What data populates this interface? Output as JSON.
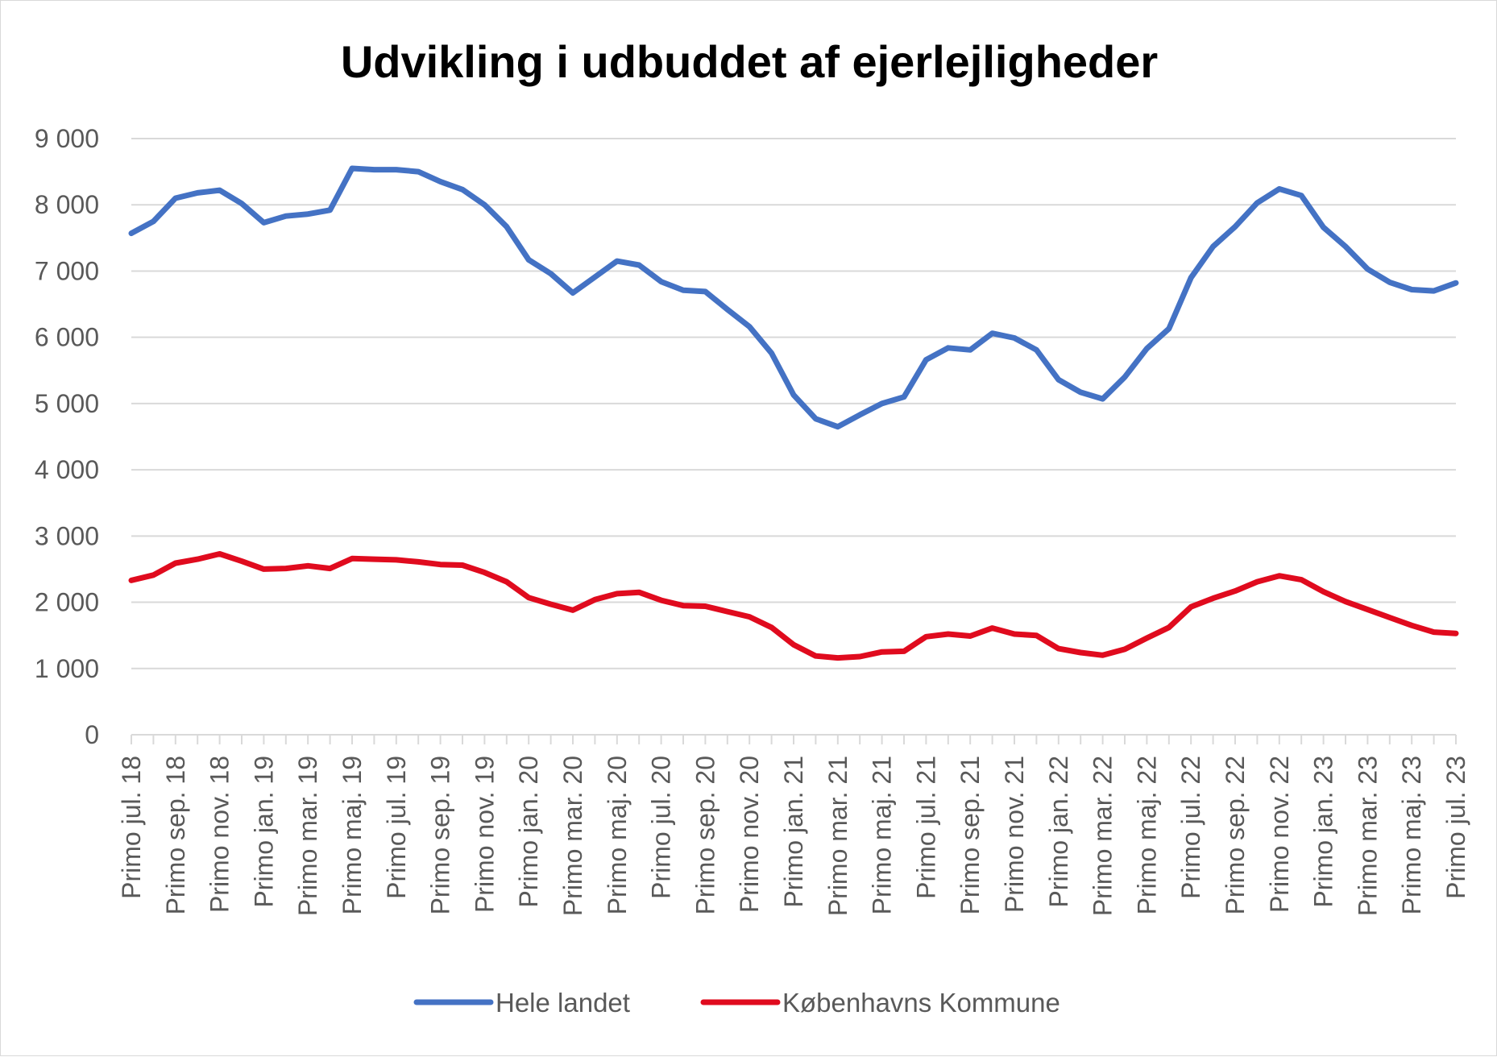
{
  "chart_data": {
    "type": "line",
    "title": "Udvikling i udbuddet af ejerlejligheder",
    "xlabel": "",
    "ylabel": "",
    "ylim": [
      0,
      9000
    ],
    "yticks": [
      0,
      1000,
      2000,
      3000,
      4000,
      5000,
      6000,
      7000,
      8000,
      9000
    ],
    "ytick_labels": [
      "0",
      "1 000",
      "2 000",
      "3 000",
      "4 000",
      "5 000",
      "6 000",
      "7 000",
      "8 000",
      "9 000"
    ],
    "grid": true,
    "legend_position": "bottom",
    "x": [
      "Primo jul. 18",
      "",
      "Primo sep. 18",
      "",
      "Primo nov. 18",
      "",
      "Primo jan. 19",
      "",
      "Primo mar. 19",
      "",
      "Primo maj. 19",
      "",
      "Primo jul. 19",
      "",
      "Primo sep. 19",
      "",
      "Primo nov. 19",
      "",
      "Primo jan. 20",
      "",
      "Primo mar. 20",
      "",
      "Primo maj. 20",
      "",
      "Primo jul. 20",
      "",
      "Primo sep. 20",
      "",
      "Primo nov. 20",
      "",
      "Primo jan. 21",
      "",
      "Primo mar. 21",
      "",
      "Primo maj. 21",
      "",
      "Primo jul. 21",
      "",
      "Primo sep. 21",
      "",
      "Primo nov. 21",
      "",
      "Primo jan. 22",
      "",
      "Primo mar. 22",
      "",
      "Primo maj. 22",
      "",
      "Primo jul. 22",
      "",
      "Primo sep. 22",
      "",
      "Primo nov. 22",
      "",
      "Primo jan. 23",
      "",
      "Primo mar. 23",
      "",
      "Primo maj. 23",
      "",
      "Primo jul. 23"
    ],
    "series": [
      {
        "name": "Hele landet",
        "color": "#4472c4",
        "values": [
          7570,
          7750,
          8100,
          8180,
          8220,
          8020,
          7730,
          7830,
          7860,
          7920,
          8550,
          8530,
          8530,
          8500,
          8350,
          8230,
          8000,
          7670,
          7170,
          6960,
          6670,
          6910,
          7150,
          7090,
          6840,
          6710,
          6690,
          6420,
          6160,
          5760,
          5130,
          4770,
          4650,
          4830,
          5000,
          5100,
          5660,
          5840,
          5810,
          6060,
          5990,
          5810,
          5360,
          5170,
          5070,
          5400,
          5830,
          6130,
          6900,
          7370,
          7670,
          8030,
          8240,
          8140,
          7660,
          7370,
          7030,
          6830,
          6720,
          6700,
          6820
        ]
      },
      {
        "name": "Københavns Kommune",
        "color": "#e00b1e",
        "values": [
          2330,
          2410,
          2590,
          2650,
          2730,
          2620,
          2500,
          2510,
          2550,
          2510,
          2660,
          2650,
          2640,
          2610,
          2570,
          2560,
          2450,
          2310,
          2070,
          1970,
          1880,
          2040,
          2130,
          2150,
          2030,
          1950,
          1940,
          1860,
          1780,
          1620,
          1360,
          1190,
          1160,
          1180,
          1250,
          1260,
          1480,
          1520,
          1490,
          1610,
          1520,
          1500,
          1300,
          1240,
          1200,
          1290,
          1460,
          1620,
          1930,
          2060,
          2170,
          2310,
          2400,
          2340,
          2160,
          2010,
          1890,
          1770,
          1650,
          1550,
          1530
        ]
      }
    ]
  }
}
